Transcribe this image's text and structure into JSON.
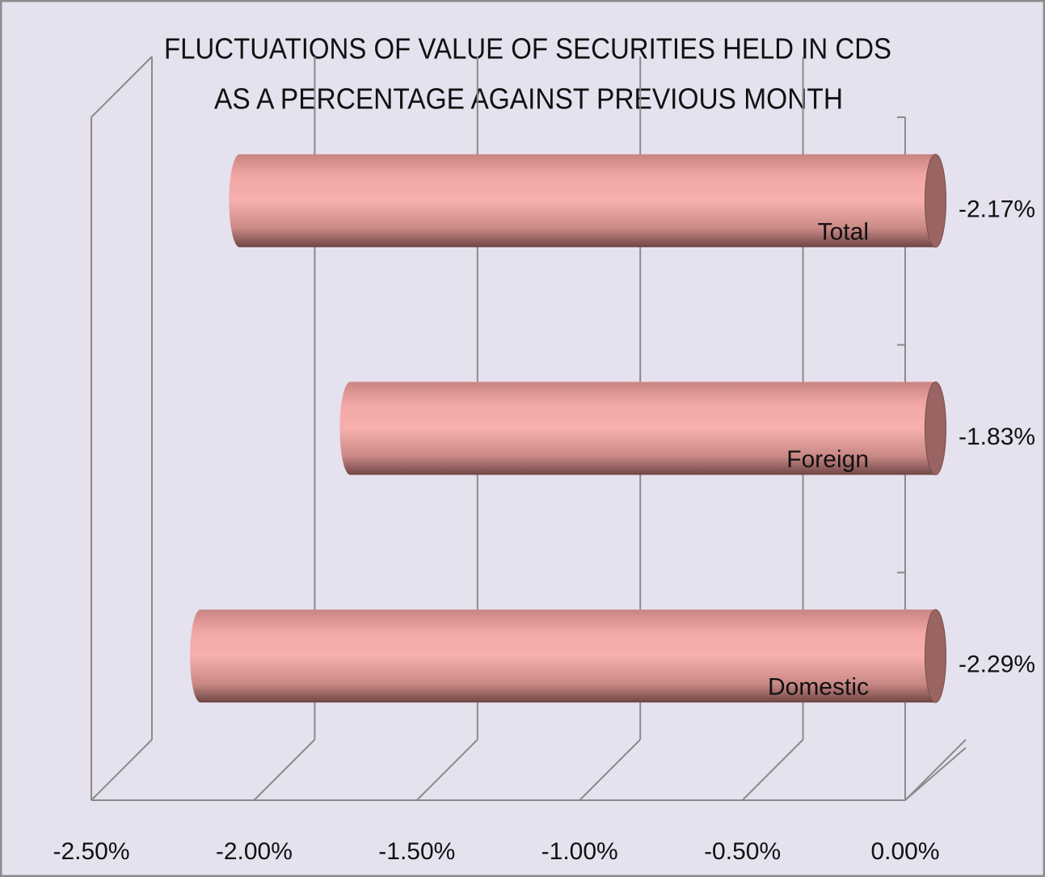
{
  "chart_data": {
    "type": "bar3d",
    "orientation": "horizontal",
    "title": [
      "FLUCTUATIONS OF  VALUE OF SECURITIES HELD IN CDS",
      "AS A PERCENTAGE AGAINST PREVIOUS MONTH"
    ],
    "categories": [
      "Total",
      "Foreign",
      "Domestic"
    ],
    "values": [
      -2.17,
      -1.83,
      -2.29
    ],
    "value_labels": [
      "-2.17%",
      "-1.83%",
      "-2.29%"
    ],
    "color": "#f2a8a6",
    "xlim": [
      -2.5,
      0
    ],
    "xticks": [
      {
        "value": -2.5,
        "label": "-2.50%"
      },
      {
        "value": -2.0,
        "label": "-2.00%"
      },
      {
        "value": -1.5,
        "label": "-1.50%"
      },
      {
        "value": -1.0,
        "label": "-1.00%"
      },
      {
        "value": -0.5,
        "label": "-0.50%"
      },
      {
        "value": 0,
        "label": "0.00%"
      }
    ],
    "grid": true
  }
}
